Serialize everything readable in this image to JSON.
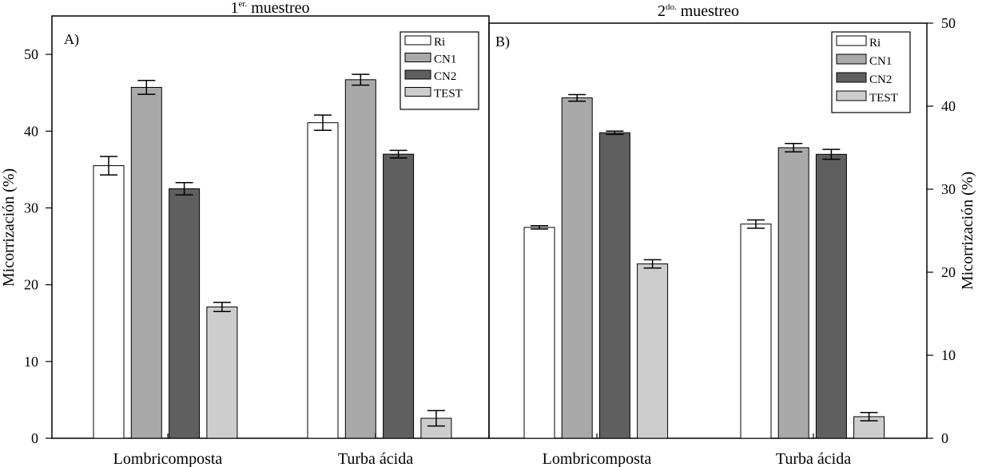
{
  "chart_data": [
    {
      "type": "bar",
      "panel_label": "A)",
      "title": {
        "base": "1",
        "sup": "er.",
        "rest": " muestreo"
      },
      "ylabel": "Micorrización (%)",
      "ylabel_side": "left",
      "ylim": [
        0,
        55
      ],
      "yticks": [
        0,
        10,
        20,
        30,
        40,
        50
      ],
      "tick_labels": [
        "0",
        "10",
        "20",
        "30",
        "40",
        "50"
      ],
      "categories": [
        "Lombricomposta",
        "Turba ácida"
      ],
      "series": [
        {
          "name": "Ri",
          "values": [
            35.5,
            41.1
          ],
          "errors": [
            1.2,
            1.0
          ],
          "color": "#ffffff"
        },
        {
          "name": "CN1",
          "values": [
            45.7,
            46.7
          ],
          "errors": [
            0.9,
            0.7
          ],
          "color": "#a9a9a9"
        },
        {
          "name": "CN2",
          "values": [
            32.5,
            37.0
          ],
          "errors": [
            0.8,
            0.5
          ],
          "color": "#5f5f5f"
        },
        {
          "name": "TEST",
          "values": [
            17.1,
            2.6
          ],
          "errors": [
            0.6,
            1.0
          ],
          "color": "#cdcdcd"
        }
      ],
      "legend_position": "top-right"
    },
    {
      "type": "bar",
      "panel_label": "B)",
      "title": {
        "base": "2",
        "sup": "do.",
        "rest": " muestreo"
      },
      "ylabel": "Micorrización (%)",
      "ylabel_side": "right",
      "ylim": [
        0,
        50
      ],
      "yticks": [
        0,
        10,
        20,
        30,
        40,
        50
      ],
      "tick_labels": [
        "0",
        "10",
        "20",
        "30",
        "40",
        "50"
      ],
      "categories": [
        "Lombricomposta",
        "Turba ácida"
      ],
      "series": [
        {
          "name": "Ri",
          "values": [
            25.4,
            25.8
          ],
          "errors": [
            0.2,
            0.5
          ],
          "color": "#ffffff"
        },
        {
          "name": "CN1",
          "values": [
            41.0,
            35.0
          ],
          "errors": [
            0.4,
            0.5
          ],
          "color": "#a9a9a9"
        },
        {
          "name": "CN2",
          "values": [
            36.8,
            34.2
          ],
          "errors": [
            0.2,
            0.6
          ],
          "color": "#5f5f5f"
        },
        {
          "name": "TEST",
          "values": [
            21.0,
            2.6
          ],
          "errors": [
            0.5,
            0.5
          ],
          "color": "#cdcdcd"
        }
      ],
      "legend_position": "top-right"
    }
  ]
}
